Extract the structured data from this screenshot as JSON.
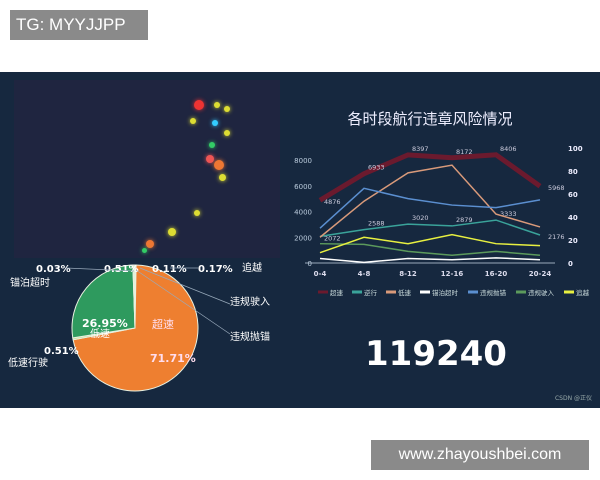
{
  "tg_label": "TG: MYYJJPP",
  "watermark": "www.zhayoushbei.com",
  "credit": "CSDN @正仪",
  "total_count": "119240",
  "chart_data": [
    {
      "type": "line",
      "title": "各时段航行违章风险情况",
      "categories": [
        "0-4",
        "4-8",
        "8-12",
        "12-16",
        "16-20",
        "20-24"
      ],
      "ylim": [
        0,
        8000
      ],
      "yticks": [
        0,
        2000,
        4000,
        6000,
        8000
      ],
      "y2lim": [
        0,
        100
      ],
      "y2ticks": [
        0,
        20,
        40,
        60,
        80,
        100
      ],
      "legend_position": "bottom",
      "series": [
        {
          "name": "超速",
          "color": "#6b1a2e",
          "values": [
            4876,
            6933,
            8397,
            8172,
            8406,
            5968
          ],
          "labels": true
        },
        {
          "name": "逆行",
          "color": "#3aa39a",
          "values": [
            2072,
            2588,
            3020,
            2879,
            3333,
            2176
          ],
          "labels": true
        },
        {
          "name": "低速",
          "color": "#d99a7a",
          "values": [
            2000,
            4800,
            7000,
            7600,
            3800,
            2800
          ]
        },
        {
          "name": "锚泊超时",
          "color": "#ffffff",
          "values": [
            350,
            50,
            350,
            250,
            400,
            250
          ]
        },
        {
          "name": "违规抛锚",
          "color": "#5b8fd0",
          "values": [
            2700,
            5800,
            5000,
            4500,
            4300,
            4900
          ]
        },
        {
          "name": "违规驶入",
          "color": "#5c9a5c",
          "values": [
            1500,
            1450,
            900,
            600,
            900,
            600
          ]
        },
        {
          "name": "追越",
          "color": "#e8f040",
          "values": [
            800,
            2000,
            1500,
            2200,
            1500,
            1350
          ]
        }
      ]
    },
    {
      "type": "pie",
      "slices": [
        {
          "name": "违规驶入",
          "value": 0.11,
          "label": "0.11%",
          "color": "#7fb0d0"
        },
        {
          "name": "追越",
          "value": 0.17,
          "label": "0.17%",
          "color": "#e8f040"
        },
        {
          "name": "违规抛锚",
          "value": 0.0,
          "label": "",
          "color": "#5b8fd0"
        },
        {
          "name": "超速",
          "value": 71.71,
          "label": "71.71%",
          "color": "#ee7f30"
        },
        {
          "name": "低速行驶",
          "value": 0.51,
          "label": "0.51%",
          "color": "#c9e0a0"
        },
        {
          "name": "低速",
          "value": 26.95,
          "label": "26.95%",
          "color": "#2e9a5e"
        },
        {
          "name": "锚泊超时",
          "value": 0.03,
          "label": "0.03%",
          "color": "#ffffff"
        },
        {
          "name": "",
          "value": 0.51,
          "label": "0.51%",
          "color": "#e0f0d0"
        }
      ]
    }
  ]
}
